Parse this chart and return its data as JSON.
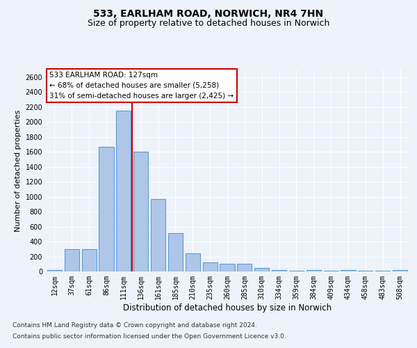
{
  "title_line1": "533, EARLHAM ROAD, NORWICH, NR4 7HN",
  "title_line2": "Size of property relative to detached houses in Norwich",
  "xlabel": "Distribution of detached houses by size in Norwich",
  "ylabel": "Number of detached properties",
  "categories": [
    "12sqm",
    "37sqm",
    "61sqm",
    "86sqm",
    "111sqm",
    "136sqm",
    "161sqm",
    "185sqm",
    "210sqm",
    "235sqm",
    "260sqm",
    "285sqm",
    "310sqm",
    "334sqm",
    "359sqm",
    "384sqm",
    "409sqm",
    "434sqm",
    "458sqm",
    "483sqm",
    "508sqm"
  ],
  "values": [
    20,
    300,
    300,
    1670,
    2150,
    1600,
    970,
    510,
    245,
    120,
    100,
    100,
    45,
    15,
    10,
    20,
    5,
    20,
    5,
    5,
    20
  ],
  "bar_color": "#aec6e8",
  "bar_edge_color": "#5b9bd5",
  "bar_linewidth": 0.8,
  "vline_x": 4.5,
  "vline_color": "#cc0000",
  "vline_linewidth": 1.5,
  "annotation_text": "533 EARLHAM ROAD: 127sqm\n← 68% of detached houses are smaller (5,258)\n31% of semi-detached houses are larger (2,425) →",
  "annotation_box_color": "#ffffff",
  "annotation_box_edge_color": "#cc0000",
  "ylim": [
    0,
    2700
  ],
  "yticks": [
    0,
    200,
    400,
    600,
    800,
    1000,
    1200,
    1400,
    1600,
    1800,
    2000,
    2200,
    2400,
    2600
  ],
  "bg_color": "#eef2fa",
  "grid_color": "#ffffff",
  "footnote1": "Contains HM Land Registry data © Crown copyright and database right 2024.",
  "footnote2": "Contains public sector information licensed under the Open Government Licence v3.0.",
  "title_fontsize": 10,
  "subtitle_fontsize": 9,
  "xlabel_fontsize": 8.5,
  "ylabel_fontsize": 8,
  "tick_fontsize": 7,
  "annotation_fontsize": 7.5,
  "footnote_fontsize": 6.5
}
